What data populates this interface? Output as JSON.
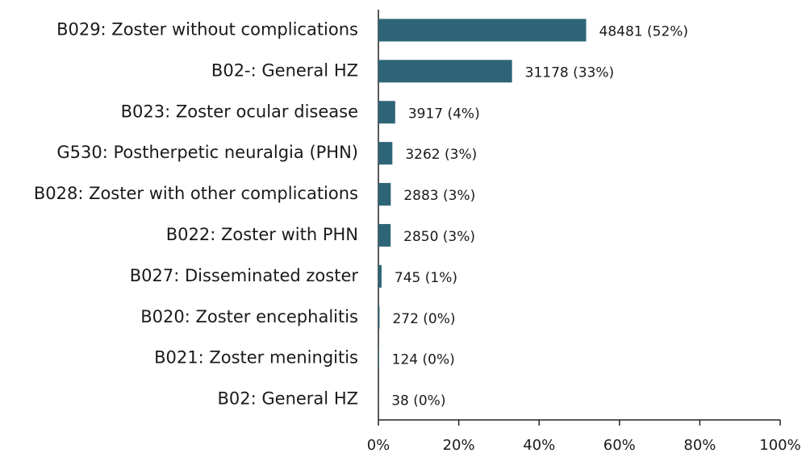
{
  "chart_data": {
    "type": "barh",
    "categories": [
      "B029: Zoster without complications",
      "B02-: General HZ",
      "B023: Zoster ocular disease",
      "G530: Postherpetic neuralgia (PHN)",
      "B028: Zoster with other complications",
      "B022: Zoster with PHN",
      "B027: Disseminated zoster",
      "B020: Zoster encephalitis",
      "B021: Zoster meningitis",
      "B02: General HZ"
    ],
    "values": [
      51.71,
      33.26,
      4.18,
      3.48,
      3.08,
      3.04,
      0.79,
      0.29,
      0.13,
      0.04
    ],
    "value_labels": [
      "48481 (52%)",
      "31178 (33%)",
      "3917 (4%)",
      "3262 (3%)",
      "2883 (3%)",
      "2850 (3%)",
      "745 (1%)",
      "272 (0%)",
      "124 (0%)",
      "38 (0%)"
    ],
    "color": "#2d6577",
    "xlim": [
      0,
      100
    ],
    "xticks": [
      {
        "value": 0,
        "label": "0%"
      },
      {
        "value": 20,
        "label": "20%"
      },
      {
        "value": 40,
        "label": "40%"
      },
      {
        "value": 60,
        "label": "60%"
      },
      {
        "value": 80,
        "label": "80%"
      },
      {
        "value": 100,
        "label": "100%"
      }
    ],
    "grid": false
  }
}
